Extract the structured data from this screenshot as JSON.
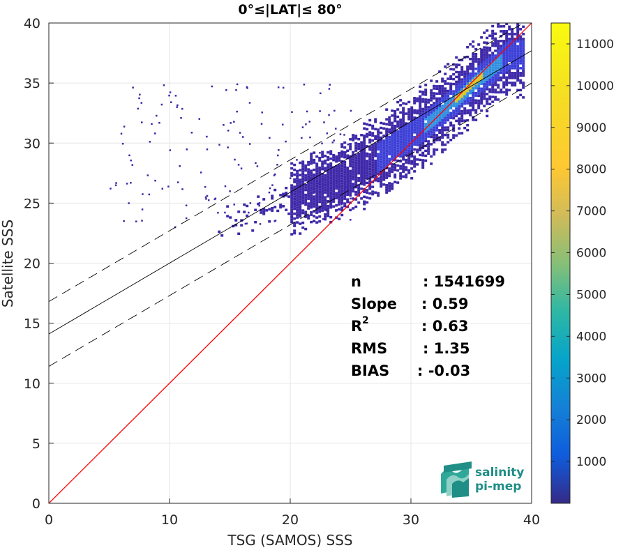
{
  "chart_data": {
    "type": "heatmap",
    "title": "0°≤|LAT|≤ 80°",
    "xlabel": "TSG (SAMOS) SSS",
    "ylabel": "Satellite SSS",
    "xlim": [
      0,
      40
    ],
    "ylim": [
      0,
      40
    ],
    "xticks": [
      "0",
      "10",
      "20",
      "30",
      "40"
    ],
    "yticks": [
      "0",
      "5",
      "10",
      "15",
      "20",
      "25",
      "30",
      "35",
      "40"
    ],
    "grid": true,
    "colorbar": {
      "range": [
        0,
        11500
      ],
      "ticks": [
        "1000",
        "2000",
        "3000",
        "4000",
        "5000",
        "6000",
        "7000",
        "8000",
        "9000",
        "10000",
        "11000"
      ]
    },
    "lines": [
      {
        "kind": "identity",
        "color": "#ff0000",
        "x": [
          0,
          40
        ],
        "y": [
          0,
          40
        ]
      },
      {
        "kind": "regression",
        "color": "#000000",
        "style": "solid",
        "x": [
          0,
          40
        ],
        "y": [
          14.1,
          37.7
        ]
      },
      {
        "kind": "regression-plus-2rms",
        "color": "#000000",
        "style": "dashed",
        "x": [
          0,
          40
        ],
        "y": [
          16.8,
          40.4
        ]
      },
      {
        "kind": "regression-minus-2rms",
        "color": "#000000",
        "style": "dashed",
        "x": [
          0,
          40
        ],
        "y": [
          11.4,
          35.0
        ]
      }
    ],
    "density_ridge": {
      "x": [
        20,
        24,
        27,
        30,
        32,
        33,
        34,
        35,
        36,
        37,
        38
      ],
      "y": [
        25.5,
        27.0,
        28.8,
        30.8,
        32.3,
        33.2,
        34.0,
        35.0,
        35.8,
        36.6,
        37.5
      ],
      "peak_count": 11000
    },
    "stats": [
      {
        "label": "n",
        "value": ": 1541699"
      },
      {
        "label": "Slope",
        "value": ": 0.59"
      },
      {
        "label": "R",
        "sup": "2",
        "value": ": 0.63"
      },
      {
        "label": "RMS",
        "value": ": 1.35"
      },
      {
        "label": "BIAS",
        "value": ": -0.03"
      }
    ]
  },
  "logo": {
    "line1": "salinity",
    "line2": "pi-mep"
  }
}
